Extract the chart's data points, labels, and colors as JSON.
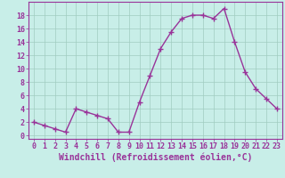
{
  "x": [
    0,
    1,
    2,
    3,
    4,
    5,
    6,
    7,
    8,
    9,
    10,
    11,
    12,
    13,
    14,
    15,
    16,
    17,
    18,
    19,
    20,
    21,
    22,
    23
  ],
  "y": [
    2,
    1.5,
    1,
    0.5,
    4,
    3.5,
    3,
    2.5,
    0.5,
    0.5,
    5,
    9,
    13,
    15.5,
    17.5,
    18,
    18,
    17.5,
    19,
    14,
    9.5,
    7,
    5.5,
    4
  ],
  "line_color": "#993399",
  "marker": "+",
  "marker_size": 4,
  "marker_linewidth": 1.0,
  "bg_color": "#c8eee8",
  "grid_color": "#a0ccc0",
  "xlabel": "Windchill (Refroidissement éolien,°C)",
  "xlabel_color": "#993399",
  "xlabel_fontsize": 7,
  "tick_color": "#993399",
  "tick_fontsize": 6,
  "xlim": [
    -0.5,
    23.5
  ],
  "ylim": [
    -0.5,
    20
  ],
  "yticks": [
    0,
    2,
    4,
    6,
    8,
    10,
    12,
    14,
    16,
    18
  ],
  "xticks": [
    0,
    1,
    2,
    3,
    4,
    5,
    6,
    7,
    8,
    9,
    10,
    11,
    12,
    13,
    14,
    15,
    16,
    17,
    18,
    19,
    20,
    21,
    22,
    23
  ],
  "linewidth": 1.0
}
